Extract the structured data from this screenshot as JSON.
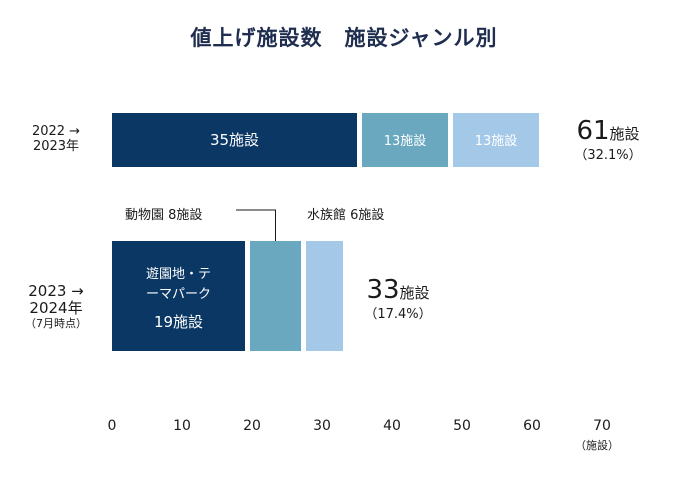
{
  "title": "値上げ施設数　施設ジャンル別",
  "rows": [
    {
      "label_line1": "2022 →",
      "label_line2": "2023年",
      "total_number": "61",
      "total_unit": "施設",
      "total_pct": "（32.1%）"
    },
    {
      "label_line1": "2023 →",
      "label_line2": "2024年",
      "label_line3": "（7月時点）",
      "total_number": "33",
      "total_unit": "施設",
      "total_pct": "（17.4%）"
    }
  ],
  "annotations": {
    "zoo": "動物園 8施設",
    "aquarium": "水族館 6施設"
  },
  "x_unit": "（施設）",
  "colors": {
    "amusement": "#0b3765",
    "zoo": "#6aa8c0",
    "aquarium": "#a4c8e8",
    "title": "#1f2d4f"
  },
  "chart_data": {
    "type": "bar",
    "orientation": "horizontal",
    "stacked": true,
    "title": "値上げ施設数　施設ジャンル別",
    "categories": [
      "2022 → 2023年",
      "2023 → 2024年（7月時点）"
    ],
    "series": [
      {
        "values": [
          35,
          19
        ],
        "labels": [
          "35施設",
          "遊園地・テーマパーク 19施設"
        ]
      },
      {
        "values": [
          13,
          8
        ],
        "labels": [
          "13施設",
          ""
        ]
      },
      {
        "values": [
          13,
          6
        ],
        "labels": [
          "13施設",
          ""
        ]
      }
    ],
    "totals": [
      61,
      33
    ],
    "totals_pct": [
      "32.1%",
      "17.4%"
    ],
    "xlim": [
      0,
      70
    ],
    "xticks": [
      "0",
      "10",
      "20",
      "30",
      "40",
      "50",
      "60",
      "70"
    ],
    "grid": false
  }
}
